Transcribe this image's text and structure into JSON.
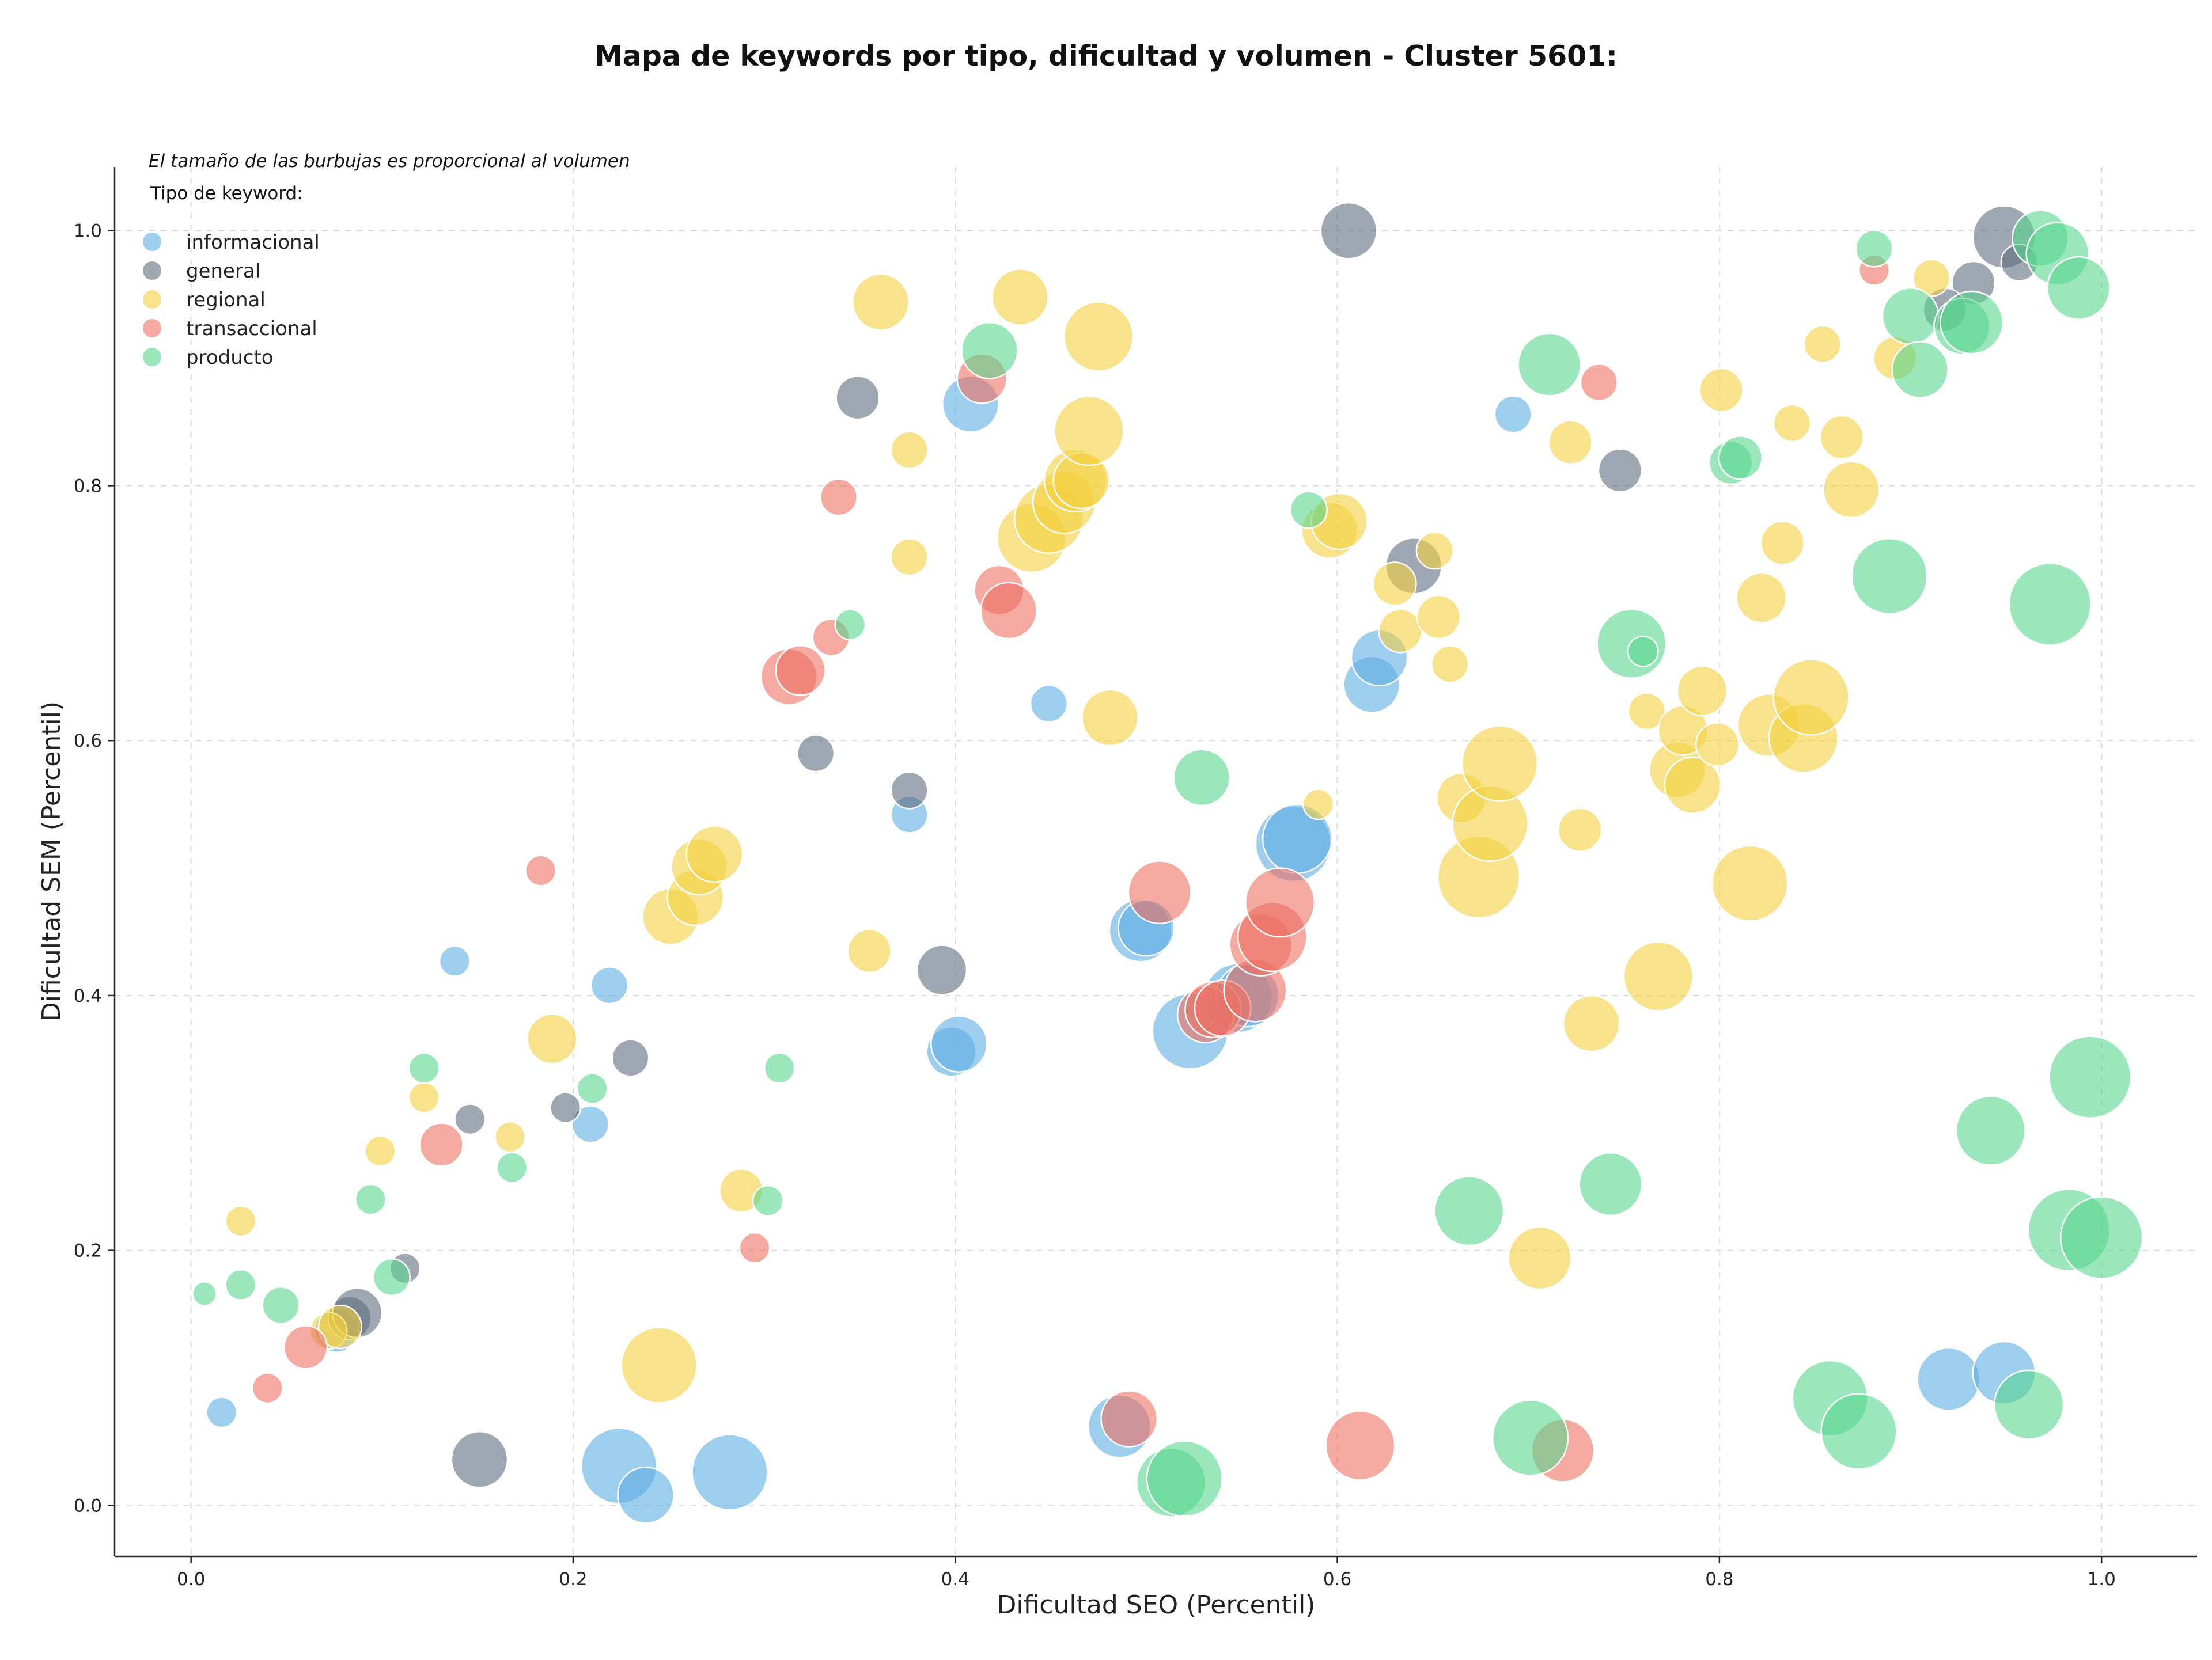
{
  "chart_data": {
    "type": "scatter",
    "title": "Mapa de keywords por tipo, dificultad y volumen - Cluster 5601:",
    "xlabel": "Dificultad SEO (Percentil)",
    "ylabel": "Dificultad SEM (Percentil)",
    "xlim": [
      -0.04,
      1.05
    ],
    "ylim": [
      -0.04,
      1.05
    ],
    "xticks": [
      "0.0",
      "0.2",
      "0.4",
      "0.6",
      "0.8",
      "1.0"
    ],
    "yticks": [
      "0.0",
      "0.2",
      "0.4",
      "0.6",
      "0.8",
      "1.0"
    ],
    "grid": true,
    "note": "El tamaño de las burbujas es proporcional al volumen",
    "legend_title": "Tipo de keyword:",
    "legend_position": "top-left",
    "series": [
      {
        "name": "informacional",
        "color": "#5DADE2",
        "points": [
          [
            0.016,
            0.073,
            2
          ],
          [
            0.138,
            0.427,
            2
          ],
          [
            0.219,
            0.408,
            3
          ],
          [
            0.209,
            0.299,
            3
          ],
          [
            0.076,
            0.137,
            4
          ],
          [
            0.224,
            0.031,
            9
          ],
          [
            0.238,
            0.008,
            6
          ],
          [
            0.282,
            0.026,
            9
          ],
          [
            0.398,
            0.356,
            5
          ],
          [
            0.402,
            0.362,
            6
          ],
          [
            0.376,
            0.542,
            3
          ],
          [
            0.408,
            0.864,
            6
          ],
          [
            0.449,
            0.629,
            3
          ],
          [
            0.486,
            0.062,
            7
          ],
          [
            0.497,
            0.451,
            7
          ],
          [
            0.5,
            0.453,
            6
          ],
          [
            0.523,
            0.372,
            9
          ],
          [
            0.548,
            0.398,
            8
          ],
          [
            0.553,
            0.4,
            7
          ],
          [
            0.577,
            0.519,
            9
          ],
          [
            0.579,
            0.523,
            8
          ],
          [
            0.618,
            0.644,
            6
          ],
          [
            0.622,
            0.665,
            6
          ],
          [
            0.692,
            0.856,
            3
          ],
          [
            0.92,
            0.099,
            7
          ],
          [
            0.949,
            0.104,
            7
          ]
        ]
      },
      {
        "name": "general",
        "color": "#5D6D7E",
        "points": [
          [
            0.083,
            0.147,
            4
          ],
          [
            0.087,
            0.151,
            5
          ],
          [
            0.112,
            0.186,
            2
          ],
          [
            0.146,
            0.303,
            2
          ],
          [
            0.151,
            0.036,
            6
          ],
          [
            0.196,
            0.312,
            2
          ],
          [
            0.23,
            0.351,
            3
          ],
          [
            0.327,
            0.59,
            3
          ],
          [
            0.349,
            0.869,
            4
          ],
          [
            0.376,
            0.561,
            3
          ],
          [
            0.393,
            0.42,
            5
          ],
          [
            0.606,
            1.0,
            6
          ],
          [
            0.64,
            0.737,
            6
          ],
          [
            0.748,
            0.812,
            4
          ],
          [
            0.933,
            0.959,
            4
          ],
          [
            0.949,
            0.995,
            7
          ],
          [
            0.918,
            0.938,
            4
          ],
          [
            0.957,
            0.975,
            3
          ]
        ]
      },
      {
        "name": "regional",
        "color": "#F4D03F",
        "points": [
          [
            0.026,
            0.223,
            2
          ],
          [
            0.072,
            0.137,
            3
          ],
          [
            0.078,
            0.14,
            4
          ],
          [
            0.099,
            0.278,
            2
          ],
          [
            0.122,
            0.32,
            2
          ],
          [
            0.167,
            0.289,
            2
          ],
          [
            0.189,
            0.366,
            5
          ],
          [
            0.245,
            0.11,
            9
          ],
          [
            0.251,
            0.462,
            6
          ],
          [
            0.264,
            0.477,
            6
          ],
          [
            0.266,
            0.501,
            6
          ],
          [
            0.274,
            0.511,
            6
          ],
          [
            0.288,
            0.247,
            4
          ],
          [
            0.355,
            0.435,
            4
          ],
          [
            0.361,
            0.944,
            6
          ],
          [
            0.376,
            0.744,
            3
          ],
          [
            0.376,
            0.828,
            3
          ],
          [
            0.434,
            0.948,
            6
          ],
          [
            0.44,
            0.759,
            8
          ],
          [
            0.449,
            0.774,
            8
          ],
          [
            0.457,
            0.787,
            7
          ],
          [
            0.463,
            0.804,
            7
          ],
          [
            0.466,
            0.804,
            6
          ],
          [
            0.47,
            0.843,
            8
          ],
          [
            0.475,
            0.917,
            8
          ],
          [
            0.481,
            0.618,
            6
          ],
          [
            0.59,
            0.55,
            2
          ],
          [
            0.596,
            0.765,
            6
          ],
          [
            0.601,
            0.772,
            6
          ],
          [
            0.63,
            0.723,
            4
          ],
          [
            0.633,
            0.686,
            4
          ],
          [
            0.651,
            0.749,
            3
          ],
          [
            0.653,
            0.697,
            4
          ],
          [
            0.659,
            0.66,
            3
          ],
          [
            0.665,
            0.555,
            5
          ],
          [
            0.674,
            0.493,
            10
          ],
          [
            0.68,
            0.535,
            9
          ],
          [
            0.685,
            0.582,
            9
          ],
          [
            0.706,
            0.194,
            7
          ],
          [
            0.722,
            0.834,
            4
          ],
          [
            0.727,
            0.53,
            4
          ],
          [
            0.733,
            0.378,
            6
          ],
          [
            0.762,
            0.623,
            3
          ],
          [
            0.768,
            0.415,
            8
          ],
          [
            0.778,
            0.577,
            6
          ],
          [
            0.781,
            0.608,
            5
          ],
          [
            0.786,
            0.565,
            6
          ],
          [
            0.791,
            0.639,
            5
          ],
          [
            0.799,
            0.597,
            4
          ],
          [
            0.801,
            0.875,
            4
          ],
          [
            0.816,
            0.488,
            9
          ],
          [
            0.822,
            0.712,
            5
          ],
          [
            0.833,
            0.755,
            4
          ],
          [
            0.838,
            0.849,
            3
          ],
          [
            0.826,
            0.612,
            7
          ],
          [
            0.844,
            0.602,
            8
          ],
          [
            0.848,
            0.634,
            9
          ],
          [
            0.854,
            0.911,
            3
          ],
          [
            0.864,
            0.838,
            4
          ],
          [
            0.869,
            0.797,
            6
          ],
          [
            0.892,
            0.9,
            4
          ],
          [
            0.911,
            0.963,
            3
          ]
        ]
      },
      {
        "name": "transaccional",
        "color": "#EC7063",
        "points": [
          [
            0.04,
            0.092,
            2
          ],
          [
            0.06,
            0.124,
            4
          ],
          [
            0.131,
            0.283,
            4
          ],
          [
            0.183,
            0.498,
            2
          ],
          [
            0.295,
            0.202,
            2
          ],
          [
            0.313,
            0.65,
            6
          ],
          [
            0.319,
            0.655,
            5
          ],
          [
            0.335,
            0.681,
            3
          ],
          [
            0.339,
            0.791,
            3
          ],
          [
            0.414,
            0.884,
            5
          ],
          [
            0.423,
            0.718,
            5
          ],
          [
            0.428,
            0.702,
            6
          ],
          [
            0.491,
            0.068,
            6
          ],
          [
            0.507,
            0.481,
            7
          ],
          [
            0.531,
            0.385,
            6
          ],
          [
            0.535,
            0.389,
            6
          ],
          [
            0.54,
            0.39,
            6
          ],
          [
            0.557,
            0.404,
            7
          ],
          [
            0.56,
            0.44,
            7
          ],
          [
            0.566,
            0.446,
            8
          ],
          [
            0.57,
            0.473,
            8
          ],
          [
            0.612,
            0.047,
            8
          ],
          [
            0.718,
            0.043,
            7
          ],
          [
            0.737,
            0.881,
            3
          ],
          [
            0.881,
            0.969,
            2
          ]
        ]
      },
      {
        "name": "producto",
        "color": "#58D68D",
        "points": [
          [
            0.007,
            0.166,
            1
          ],
          [
            0.026,
            0.173,
            2
          ],
          [
            0.047,
            0.157,
            3
          ],
          [
            0.094,
            0.24,
            2
          ],
          [
            0.105,
            0.179,
            3
          ],
          [
            0.122,
            0.343,
            2
          ],
          [
            0.168,
            0.265,
            2
          ],
          [
            0.21,
            0.327,
            2
          ],
          [
            0.302,
            0.239,
            2
          ],
          [
            0.308,
            0.343,
            2
          ],
          [
            0.345,
            0.691,
            2
          ],
          [
            0.418,
            0.906,
            6
          ],
          [
            0.513,
            0.018,
            8
          ],
          [
            0.52,
            0.021,
            9
          ],
          [
            0.529,
            0.571,
            6
          ],
          [
            0.585,
            0.781,
            3
          ],
          [
            0.669,
            0.231,
            8
          ],
          [
            0.701,
            0.053,
            9
          ],
          [
            0.711,
            0.895,
            7
          ],
          [
            0.743,
            0.252,
            7
          ],
          [
            0.754,
            0.676,
            8
          ],
          [
            0.76,
            0.67,
            2
          ],
          [
            0.806,
            0.818,
            4
          ],
          [
            0.811,
            0.822,
            4
          ],
          [
            0.858,
            0.084,
            9
          ],
          [
            0.873,
            0.058,
            9
          ],
          [
            0.881,
            0.986,
            3
          ],
          [
            0.889,
            0.729,
            9
          ],
          [
            0.9,
            0.933,
            6
          ],
          [
            0.905,
            0.891,
            6
          ],
          [
            0.927,
            0.925,
            6
          ],
          [
            0.932,
            0.928,
            7
          ],
          [
            0.942,
            0.294,
            8
          ],
          [
            0.962,
            0.079,
            8
          ],
          [
            0.968,
            0.994,
            6
          ],
          [
            0.973,
            0.707,
            10
          ],
          [
            0.977,
            0.982,
            7
          ],
          [
            0.983,
            0.216,
            10
          ],
          [
            0.988,
            0.955,
            7
          ],
          [
            0.994,
            0.336,
            10
          ],
          [
            1.0,
            0.21,
            10
          ]
        ]
      }
    ]
  }
}
